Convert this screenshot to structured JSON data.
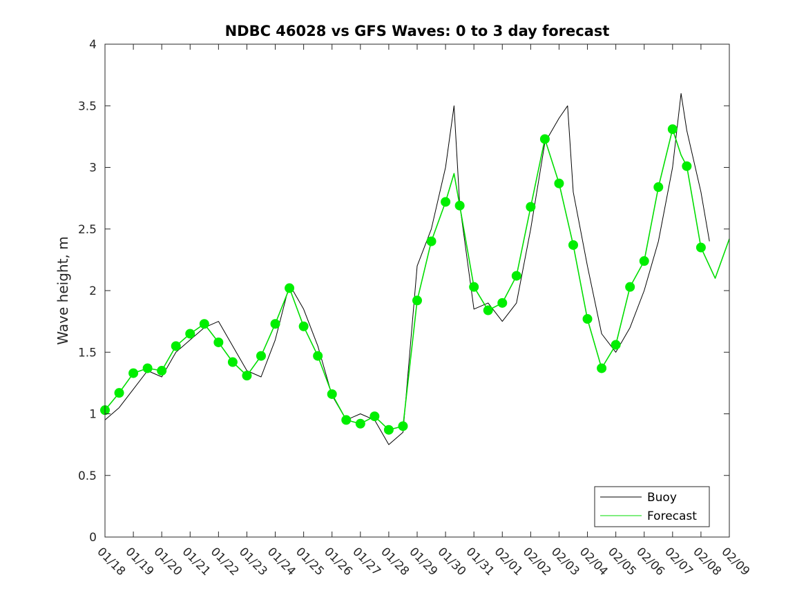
{
  "chart_data": {
    "type": "line",
    "title": "NDBC 46028 vs GFS Waves: 0 to 3 day forecast",
    "xlabel": "",
    "ylabel": "Wave height, m",
    "ylim": [
      0,
      4
    ],
    "xlim": [
      0,
      22
    ],
    "grid": false,
    "legend_position": "bottom-right",
    "y_ticks": [
      0,
      0.5,
      1,
      1.5,
      2,
      2.5,
      3,
      3.5,
      4
    ],
    "y_tick_labels": [
      "0",
      "0.5",
      "1",
      "1.5",
      "2",
      "2.5",
      "3",
      "3.5",
      "4"
    ],
    "x_ticks": [
      0,
      1,
      2,
      3,
      4,
      5,
      6,
      7,
      8,
      9,
      10,
      11,
      12,
      13,
      14,
      15,
      16,
      17,
      18,
      19,
      20,
      21,
      22
    ],
    "x_tick_labels": [
      "01/18",
      "01/19",
      "01/20",
      "01/21",
      "01/22",
      "01/23",
      "01/24",
      "01/25",
      "01/26",
      "01/27",
      "01/28",
      "01/29",
      "01/30",
      "01/31",
      "02/01",
      "02/02",
      "02/03",
      "02/04",
      "02/05",
      "02/06",
      "02/07",
      "02/08",
      "02/09"
    ],
    "series": [
      {
        "name": "Buoy",
        "color": "#000000",
        "x": [
          0,
          0.5,
          1,
          1.5,
          2,
          2.5,
          3,
          3.5,
          4,
          4.5,
          5,
          5.5,
          6,
          6.5,
          7,
          7.5,
          8,
          8.5,
          9,
          9.5,
          10,
          10.5,
          11,
          11.5,
          12,
          12.3,
          12.5,
          13,
          13.5,
          14,
          14.5,
          15,
          15.5,
          16,
          16.3,
          16.5,
          17,
          17.5,
          18,
          18.5,
          19,
          19.5,
          20,
          20.3,
          20.5,
          21,
          21.3
        ],
        "y": [
          0.95,
          1.05,
          1.2,
          1.35,
          1.3,
          1.5,
          1.6,
          1.7,
          1.75,
          1.55,
          1.35,
          1.3,
          1.6,
          2.05,
          1.85,
          1.55,
          1.15,
          0.95,
          1.0,
          0.95,
          0.75,
          0.85,
          2.2,
          2.5,
          3.0,
          3.5,
          2.7,
          1.85,
          1.9,
          1.75,
          1.9,
          2.5,
          3.2,
          3.4,
          3.5,
          2.8,
          2.2,
          1.65,
          1.5,
          1.7,
          2.0,
          2.4,
          3.0,
          3.6,
          3.3,
          2.8,
          2.4
        ]
      },
      {
        "name": "Forecast",
        "color": "#00dd00",
        "x": [
          0,
          0.5,
          1,
          1.5,
          2,
          2.5,
          3,
          3.5,
          4,
          4.5,
          5,
          5.5,
          6,
          6.5,
          7,
          7.5,
          8,
          8.5,
          9,
          9.5,
          10,
          10.5,
          11,
          11.5,
          12,
          12.3,
          12.5,
          13,
          13.5,
          14,
          14.5,
          15,
          15.5,
          16,
          16.5,
          17,
          17.5,
          18,
          18.5,
          19,
          19.5,
          20,
          20.3,
          20.5,
          21,
          21.5,
          22
        ],
        "y": [
          1.03,
          1.17,
          1.33,
          1.37,
          1.35,
          1.55,
          1.65,
          1.73,
          1.58,
          1.42,
          1.31,
          1.47,
          1.73,
          2.02,
          1.71,
          1.47,
          1.16,
          0.95,
          0.92,
          0.98,
          0.87,
          0.9,
          1.92,
          2.4,
          2.72,
          2.95,
          2.69,
          2.03,
          1.84,
          1.9,
          2.12,
          2.68,
          3.23,
          2.87,
          2.37,
          1.77,
          1.37,
          1.56,
          2.03,
          2.24,
          2.84,
          3.31,
          3.1,
          3.01,
          2.35,
          2.1,
          2.42
        ]
      }
    ],
    "markers": {
      "x": [
        0,
        0.5,
        1,
        1.5,
        2,
        2.5,
        3,
        3.5,
        4,
        4.5,
        5,
        5.5,
        6,
        6.5,
        7,
        7.5,
        8,
        8.5,
        9,
        9.5,
        10,
        10.5,
        11,
        11.5,
        12,
        12.5,
        13,
        13.5,
        14,
        14.5,
        15,
        15.5,
        16,
        16.5,
        17,
        17.5,
        18,
        18.5,
        19,
        19.5,
        20,
        20.5,
        21
      ],
      "y": [
        1.03,
        1.17,
        1.33,
        1.37,
        1.35,
        1.55,
        1.65,
        1.73,
        1.58,
        1.42,
        1.31,
        1.47,
        1.73,
        2.02,
        1.71,
        1.47,
        1.16,
        0.95,
        0.92,
        0.98,
        0.87,
        0.9,
        1.92,
        2.4,
        2.72,
        2.69,
        2.03,
        1.84,
        1.9,
        2.12,
        2.68,
        3.23,
        2.87,
        2.37,
        1.77,
        1.37,
        1.56,
        2.03,
        2.24,
        2.84,
        3.31,
        3.01,
        2.35
      ]
    },
    "legend": {
      "entries": [
        "Buoy",
        "Forecast"
      ]
    }
  }
}
